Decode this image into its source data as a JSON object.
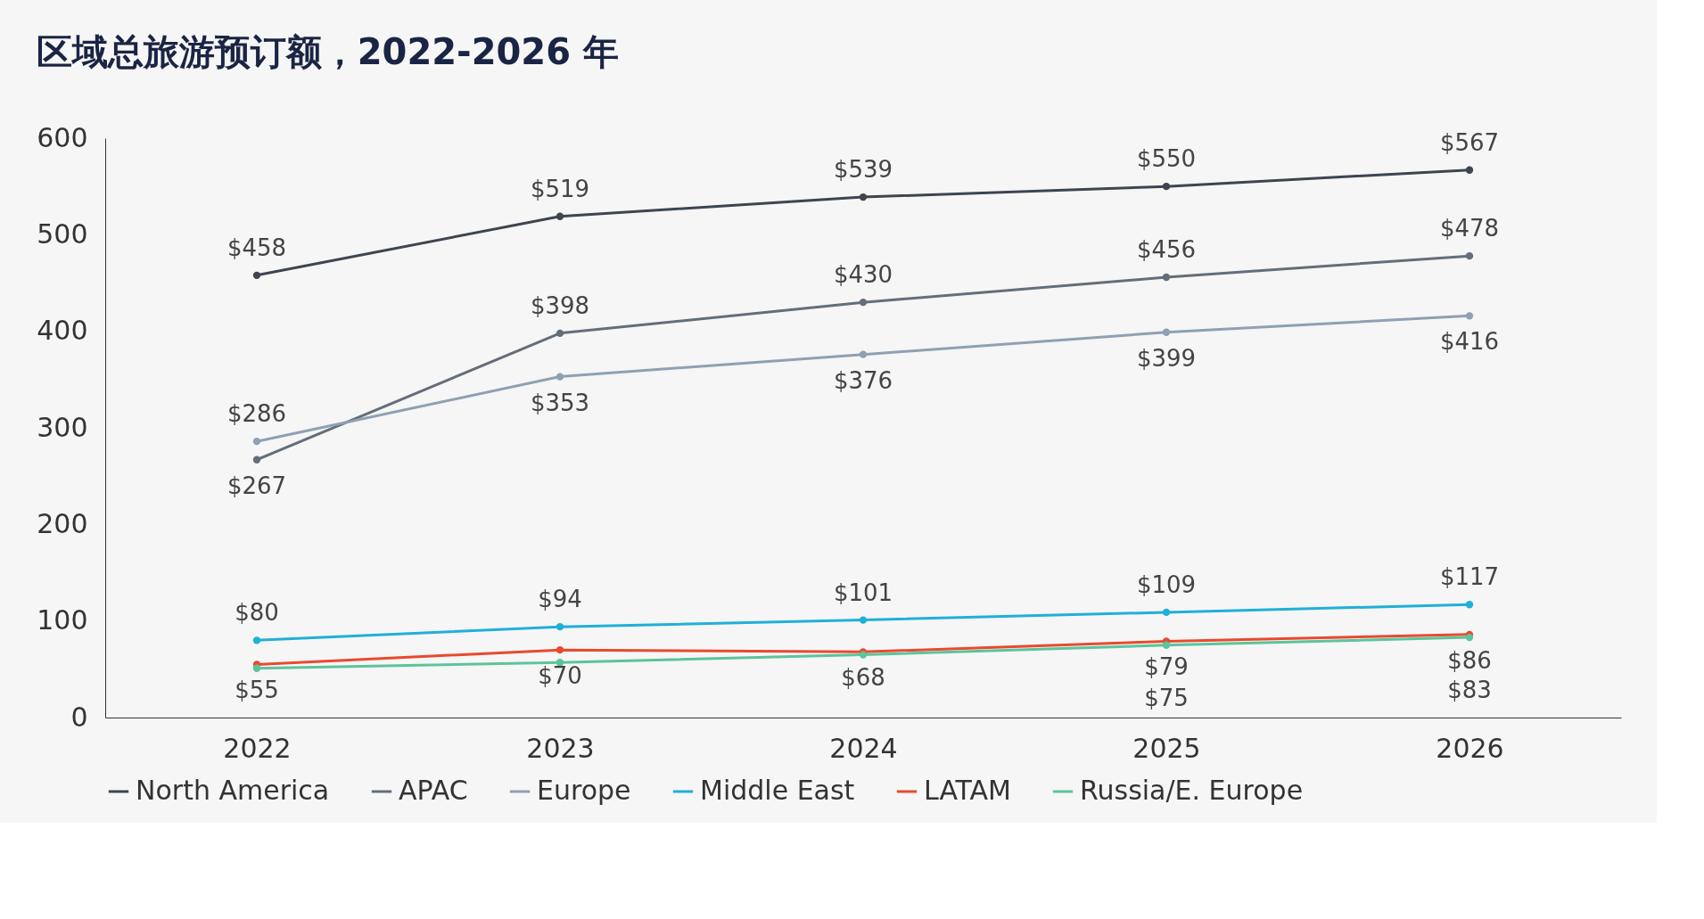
{
  "chart_data": {
    "type": "line",
    "title": "区域总旅游预订额，2022-2026 年",
    "categories": [
      "2022",
      "2023",
      "2024",
      "2025",
      "2026"
    ],
    "series": [
      {
        "name": "North America",
        "color": "#3d4550",
        "values": [
          458,
          519,
          539,
          550,
          567
        ],
        "value_labels": [
          "$458",
          "$519",
          "$539",
          "$550",
          "$567"
        ]
      },
      {
        "name": "APAC",
        "color": "#646e7a",
        "values": [
          267,
          398,
          430,
          456,
          478
        ],
        "value_labels": [
          "$267",
          "$398",
          "$430",
          "$456",
          "$478"
        ]
      },
      {
        "name": "Europe",
        "color": "#8fa0b3",
        "values": [
          286,
          353,
          376,
          399,
          416
        ],
        "value_labels": [
          "$286",
          "$353",
          "$376",
          "$399",
          "$416"
        ]
      },
      {
        "name": "Middle East",
        "color": "#1fb0d8",
        "values": [
          80,
          94,
          101,
          109,
          117
        ],
        "value_labels": [
          "$80",
          "$94",
          "$101",
          "$109",
          "$117"
        ]
      },
      {
        "name": "LATAM",
        "color": "#e84a2f",
        "values": [
          55,
          70,
          68,
          79,
          86
        ],
        "value_labels": [
          "$55",
          "$70",
          "$68",
          "$79",
          "$86"
        ]
      },
      {
        "name": "Russia/E. Europe",
        "color": "#5cc49a",
        "values": [
          51,
          57,
          65,
          75,
          83
        ],
        "value_labels": [
          null,
          null,
          null,
          "$75",
          "$83"
        ]
      }
    ],
    "ylim": [
      0,
      600
    ],
    "yticks": [
      0,
      100,
      200,
      300,
      400,
      500,
      600
    ],
    "grid": false,
    "legend": "bottom",
    "marker": "circle",
    "line_style": "solid"
  }
}
